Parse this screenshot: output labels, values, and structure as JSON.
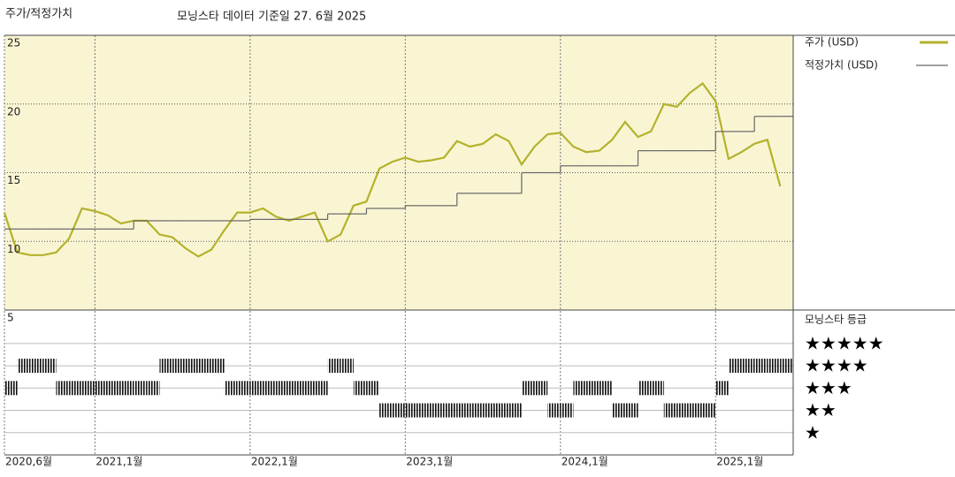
{
  "header": {
    "title": "주가/적정가치",
    "subtitle": "모닝스타 데이터 기준일 27. 6월 2025"
  },
  "chart_data": [
    {
      "type": "line",
      "x": [
        "2020-06",
        "2020-07",
        "2020-08",
        "2020-09",
        "2020-10",
        "2020-11",
        "2020-12",
        "2021-01",
        "2021-02",
        "2021-03",
        "2021-04",
        "2021-05",
        "2021-06",
        "2021-07",
        "2021-08",
        "2021-09",
        "2021-10",
        "2021-11",
        "2021-12",
        "2022-01",
        "2022-02",
        "2022-03",
        "2022-04",
        "2022-05",
        "2022-06",
        "2022-07",
        "2022-08",
        "2022-09",
        "2022-10",
        "2022-11",
        "2022-12",
        "2023-01",
        "2023-02",
        "2023-03",
        "2023-04",
        "2023-05",
        "2023-06",
        "2023-07",
        "2023-08",
        "2023-09",
        "2023-10",
        "2023-11",
        "2023-12",
        "2024-01",
        "2024-02",
        "2024-03",
        "2024-04",
        "2024-05",
        "2024-06",
        "2024-07",
        "2024-08",
        "2024-09",
        "2024-10",
        "2024-11",
        "2024-12",
        "2025-01",
        "2025-02",
        "2025-03",
        "2025-04",
        "2025-05",
        "2025-06"
      ],
      "xlim": [
        "2020-06",
        "2025-07"
      ],
      "xticks": [
        {
          "value": "2020-06",
          "label": "2020,6월"
        },
        {
          "value": "2021-01",
          "label": "2021,1월"
        },
        {
          "value": "2022-01",
          "label": "2022,1월"
        },
        {
          "value": "2023-01",
          "label": "2023,1월"
        },
        {
          "value": "2024-01",
          "label": "2024,1월"
        },
        {
          "value": "2025-01",
          "label": "2025,1월"
        }
      ],
      "ylim": [
        5,
        25
      ],
      "yticks": [
        5,
        10,
        15,
        20,
        25
      ],
      "grid": true,
      "series": [
        {
          "name": "주가 (USD)",
          "color": "#b3b22c",
          "values": [
            12.1,
            9.2,
            9.0,
            9.0,
            9.2,
            10.2,
            12.4,
            12.2,
            11.9,
            11.3,
            11.5,
            11.5,
            10.5,
            10.3,
            9.5,
            8.9,
            9.4,
            10.8,
            12.1,
            12.1,
            12.4,
            11.8,
            11.5,
            11.8,
            12.1,
            10.0,
            10.5,
            12.6,
            12.9,
            15.3,
            15.8,
            16.1,
            15.8,
            15.9,
            16.1,
            17.3,
            16.9,
            17.1,
            17.8,
            17.3,
            15.6,
            16.9,
            17.8,
            17.9,
            16.9,
            16.5,
            16.6,
            17.4,
            18.7,
            17.6,
            18.0,
            20.0,
            19.8,
            20.8,
            21.5,
            20.2,
            16.0,
            16.5,
            17.1,
            17.4,
            14.0
          ]
        },
        {
          "name": "적정가치 (USD)",
          "color": "#666666",
          "step": true,
          "values": [
            10.9,
            10.9,
            10.9,
            10.9,
            10.9,
            10.9,
            10.9,
            10.9,
            10.9,
            10.9,
            11.5,
            11.5,
            11.5,
            11.5,
            11.5,
            11.5,
            11.5,
            11.5,
            11.5,
            11.6,
            11.6,
            11.6,
            11.6,
            11.6,
            11.6,
            12.0,
            12.0,
            12.0,
            12.4,
            12.4,
            12.4,
            12.6,
            12.6,
            12.6,
            12.6,
            13.5,
            13.5,
            13.5,
            13.5,
            13.5,
            15.0,
            15.0,
            15.0,
            15.5,
            15.5,
            15.5,
            15.5,
            15.5,
            15.5,
            16.6,
            16.6,
            16.6,
            16.6,
            16.6,
            16.6,
            18.0,
            18.0,
            18.0,
            19.1,
            19.1,
            19.1
          ]
        }
      ]
    },
    {
      "type": "rating",
      "title": "모닝스타 등급",
      "x": [
        "2020-06",
        "2020-07",
        "2020-08",
        "2020-09",
        "2020-10",
        "2020-11",
        "2020-12",
        "2021-01",
        "2021-02",
        "2021-03",
        "2021-04",
        "2021-05",
        "2021-06",
        "2021-07",
        "2021-08",
        "2021-09",
        "2021-10",
        "2021-11",
        "2021-12",
        "2022-01",
        "2022-02",
        "2022-03",
        "2022-04",
        "2022-05",
        "2022-06",
        "2022-07",
        "2022-08",
        "2022-09",
        "2022-10",
        "2022-11",
        "2022-12",
        "2023-01",
        "2023-02",
        "2023-03",
        "2023-04",
        "2023-05",
        "2023-06",
        "2023-07",
        "2023-08",
        "2023-09",
        "2023-10",
        "2023-11",
        "2023-12",
        "2024-01",
        "2024-02",
        "2024-03",
        "2024-04",
        "2024-05",
        "2024-06",
        "2024-07",
        "2024-08",
        "2024-09",
        "2024-10",
        "2024-11",
        "2024-12",
        "2025-01",
        "2025-02",
        "2025-03",
        "2025-04",
        "2025-05",
        "2025-06"
      ],
      "xlim": [
        "2020-06",
        "2025-07"
      ],
      "ylim": [
        0,
        6.5
      ],
      "yticks": [
        {
          "value": 5,
          "label": "★★★★★"
        },
        {
          "value": 4,
          "label": "★★★★"
        },
        {
          "value": 3,
          "label": "★★★"
        },
        {
          "value": 2,
          "label": "★★"
        },
        {
          "value": 1,
          "label": "★"
        }
      ],
      "color": "#111111",
      "values": [
        3,
        4,
        4,
        4,
        3,
        3,
        3,
        3,
        3,
        3,
        3,
        3,
        4,
        4,
        4,
        4,
        4,
        3,
        3,
        3,
        3,
        3,
        3,
        3,
        3,
        4,
        4,
        3,
        3,
        2,
        2,
        2,
        2,
        2,
        2,
        2,
        2,
        2,
        2,
        2,
        3,
        3,
        2,
        2,
        3,
        3,
        3,
        2,
        2,
        3,
        3,
        2,
        2,
        2,
        2,
        3,
        4,
        4,
        4,
        4,
        4
      ]
    }
  ]
}
